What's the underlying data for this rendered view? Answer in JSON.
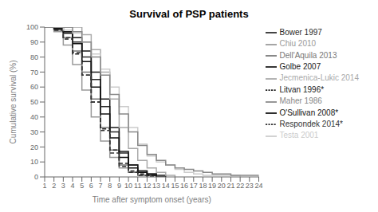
{
  "chart_data": {
    "type": "line",
    "title": "Survival of PSP patients",
    "xlabel": "Time after symptom onset (years)",
    "ylabel": "Cumulative survival (%)",
    "xlim": [
      1,
      24
    ],
    "ylim": [
      0,
      100
    ],
    "xticks": [
      1,
      2,
      3,
      4,
      5,
      6,
      7,
      8,
      9,
      10,
      11,
      12,
      13,
      14,
      15,
      16,
      17,
      18,
      19,
      20,
      21,
      22,
      23,
      24
    ],
    "yticks": [
      0,
      10,
      20,
      30,
      40,
      50,
      60,
      70,
      80,
      90,
      100
    ],
    "grid": false,
    "legend": "upper right",
    "series": [
      {
        "name": "Bower 1997",
        "color": "#2a2a2a",
        "line_style": "solid",
        "x": [
          1,
          2,
          3,
          4,
          5,
          6,
          7,
          8,
          9,
          10,
          11,
          12,
          13
        ],
        "values": [
          100,
          99,
          96,
          90,
          80,
          65,
          47,
          30,
          16,
          8,
          4,
          2,
          0
        ]
      },
      {
        "name": "Chiu 2010",
        "color": "#999999",
        "line_style": "solid",
        "x": [
          1,
          2,
          3,
          4,
          5,
          6,
          7,
          8,
          9,
          10,
          11,
          12
        ],
        "values": [
          100,
          97,
          88,
          75,
          58,
          40,
          24,
          13,
          6,
          3,
          1,
          0
        ]
      },
      {
        "name": "Dell'Aquila 2013",
        "color": "#777777",
        "line_style": "solid",
        "x": [
          1,
          2,
          3,
          4,
          5,
          6,
          7,
          8,
          9,
          10,
          11,
          12
        ],
        "values": [
          100,
          98,
          93,
          84,
          70,
          52,
          33,
          18,
          8,
          3,
          1,
          0
        ]
      },
      {
        "name": "Golbe 2007",
        "color": "#1a1a1a",
        "line_style": "solid",
        "x": [
          1,
          2,
          3,
          4,
          5,
          6,
          7,
          8,
          9,
          10,
          11,
          12,
          13,
          14
        ],
        "values": [
          100,
          99,
          97,
          93,
          84,
          70,
          52,
          33,
          17,
          8,
          4,
          2,
          1,
          0
        ]
      },
      {
        "name": "Jecmenica-Lukic 2014",
        "color": "#aaaaaa",
        "line_style": "solid",
        "x": [
          1,
          2,
          3,
          4,
          5,
          6,
          7,
          8,
          9,
          10,
          11,
          12,
          13,
          14,
          15
        ],
        "values": [
          100,
          100,
          100,
          100,
          95,
          85,
          70,
          52,
          33,
          19,
          11,
          6,
          3,
          1,
          0
        ]
      },
      {
        "name": "Litvan 1996*",
        "color": "#222222",
        "line_style": "dashed",
        "x": [
          1,
          2,
          3,
          4,
          5,
          6,
          7,
          8,
          9,
          10,
          11,
          12,
          13
        ],
        "values": [
          100,
          98,
          92,
          82,
          68,
          50,
          32,
          18,
          9,
          4,
          2,
          1,
          0
        ]
      },
      {
        "name": "O'Sullivan 2008*",
        "color": "#111111",
        "line_style": "solid",
        "x": [
          1,
          2,
          3,
          4,
          5,
          6,
          7,
          8,
          9,
          10,
          11,
          12,
          13,
          14
        ],
        "values": [
          100,
          99,
          96,
          89,
          77,
          60,
          42,
          26,
          13,
          6,
          3,
          1,
          0,
          0
        ]
      },
      {
        "name": "Respondek 2014*",
        "color": "#333333",
        "line_style": "dashed",
        "x": [
          1,
          2,
          3,
          4,
          5,
          6,
          7,
          8,
          9,
          10,
          11,
          12,
          13
        ],
        "values": [
          100,
          98,
          93,
          83,
          68,
          50,
          31,
          16,
          7,
          3,
          1,
          0,
          0
        ]
      },
      {
        "name": "Testa 2001",
        "color": "#cccccc",
        "line_style": "solid",
        "x": [
          1,
          2,
          3,
          4,
          5,
          6,
          7,
          8,
          9,
          10,
          11,
          12,
          13,
          14,
          15,
          16,
          17,
          18,
          19,
          20,
          21,
          22
        ],
        "values": [
          100,
          100,
          98,
          96,
          90,
          82,
          72,
          60,
          47,
          33,
          22,
          14,
          10,
          8,
          5,
          3,
          2,
          1,
          1,
          1,
          1,
          0
        ]
      },
      {
        "name": "Maher 1986",
        "color": "#888888",
        "line_style": "solid",
        "x": [
          1,
          2,
          3,
          4,
          5,
          6,
          7,
          8,
          9,
          10,
          11,
          12,
          13,
          14,
          15,
          16,
          17,
          18,
          19,
          20,
          21,
          22,
          23,
          24
        ],
        "values": [
          100,
          100,
          100,
          97,
          90,
          80,
          68,
          55,
          42,
          30,
          21,
          15,
          11,
          8,
          6,
          5,
          4,
          3,
          2,
          2,
          1,
          1,
          1,
          0
        ]
      }
    ]
  }
}
